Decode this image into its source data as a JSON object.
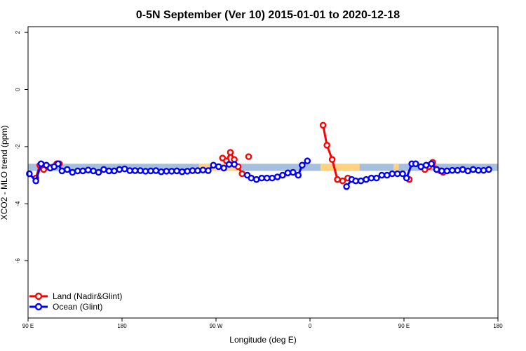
{
  "chart_data": {
    "type": "line",
    "title": "0-5N September (Ver 10)   2015-01-01 to 2020-12-18",
    "xlabel": "Longitude (deg E)",
    "ylabel": "XCO2 - MLO trend (ppm)",
    "xlim": [
      90,
      450
    ],
    "ylim": [
      -8,
      2.2
    ],
    "x_ticks": [
      {
        "value": 90,
        "label": "90 E"
      },
      {
        "value": 162,
        "label": "180"
      },
      {
        "value": 234,
        "label": "90 W"
      },
      {
        "value": 306,
        "label": "0"
      },
      {
        "value": 378,
        "label": "90 E"
      },
      {
        "value": 450,
        "label": "180"
      }
    ],
    "y_ticks": [
      {
        "value": 2,
        "label": "2"
      },
      {
        "value": 0,
        "label": "0"
      },
      {
        "value": -2,
        "label": "-2"
      },
      {
        "value": -4,
        "label": "-4"
      },
      {
        "value": -6,
        "label": "-6"
      }
    ],
    "background_band": {
      "y_range": [
        -2.85,
        -2.6
      ],
      "land_color": "#FFD27F",
      "ocean_color": "#A7BFDF",
      "land_x_ranges": [
        [
          221,
          252
        ],
        [
          314,
          344
        ],
        [
          370,
          374
        ]
      ]
    },
    "series": [
      {
        "name": "Land (Nadir&Glint)",
        "color": "#FF0000",
        "segments": [
          [
            [
              96,
              -3.1
            ],
            [
              99,
              -2.65
            ],
            [
              102,
              -2.8
            ],
            [
              105,
              -2.7
            ],
            [
              112,
              -2.6
            ],
            [
              114,
              -2.6
            ]
          ],
          [
            [
              239,
              -2.4
            ],
            [
              242,
              -2.5
            ],
            [
              245,
              -2.2
            ],
            [
              248,
              -2.45
            ],
            [
              251,
              -2.7
            ],
            [
              254,
              -2.95
            ]
          ],
          [
            [
              259,
              -2.35
            ]
          ],
          [
            [
              316,
              -1.25
            ],
            [
              319,
              -1.95
            ],
            [
              323,
              -2.45
            ],
            [
              327,
              -3.15
            ],
            [
              331,
              -3.2
            ],
            [
              335,
              -3.1
            ]
          ],
          [
            [
              382,
              -3.15
            ]
          ],
          [
            [
              394,
              -2.8
            ],
            [
              397,
              -2.7
            ],
            [
              400,
              -2.55
            ],
            [
              403,
              -2.8
            ],
            [
              406,
              -2.85
            ],
            [
              408,
              -2.9
            ]
          ]
        ]
      },
      {
        "name": "Ocean (Glint)",
        "color": "#0000FF",
        "segments": [
          [
            [
              91,
              -2.95
            ],
            [
              96,
              -3.2
            ],
            [
              100,
              -2.6
            ],
            [
              104,
              -2.65
            ],
            [
              107,
              -2.75
            ],
            [
              110,
              -2.7
            ],
            [
              113,
              -2.6
            ],
            [
              116,
              -2.85
            ],
            [
              120,
              -2.8
            ],
            [
              124,
              -2.9
            ],
            [
              128,
              -2.85
            ],
            [
              132,
              -2.85
            ],
            [
              136,
              -2.82
            ],
            [
              140,
              -2.85
            ],
            [
              144,
              -2.9
            ],
            [
              148,
              -2.8
            ],
            [
              152,
              -2.85
            ],
            [
              156,
              -2.85
            ],
            [
              160,
              -2.8
            ],
            [
              164,
              -2.78
            ],
            [
              168,
              -2.84
            ],
            [
              172,
              -2.84
            ],
            [
              176,
              -2.84
            ],
            [
              180,
              -2.86
            ],
            [
              184,
              -2.85
            ],
            [
              188,
              -2.84
            ],
            [
              192,
              -2.88
            ],
            [
              196,
              -2.86
            ],
            [
              200,
              -2.86
            ],
            [
              204,
              -2.85
            ],
            [
              208,
              -2.88
            ],
            [
              212,
              -2.86
            ],
            [
              216,
              -2.84
            ],
            [
              220,
              -2.84
            ],
            [
              224,
              -2.82
            ],
            [
              228,
              -2.84
            ],
            [
              232,
              -2.65
            ],
            [
              236,
              -2.7
            ],
            [
              240,
              -2.75
            ],
            [
              244,
              -2.62
            ],
            [
              248,
              -2.62
            ]
          ],
          [
            [
              258,
              -3.0
            ],
            [
              261,
              -3.1
            ],
            [
              265,
              -3.15
            ],
            [
              269,
              -3.1
            ],
            [
              273,
              -3.1
            ],
            [
              277,
              -3.1
            ],
            [
              281,
              -3.06
            ],
            [
              285,
              -3.0
            ],
            [
              289,
              -2.92
            ],
            [
              293,
              -2.9
            ],
            [
              297,
              -3.0
            ],
            [
              300,
              -2.65
            ],
            [
              304,
              -2.5
            ]
          ],
          [
            [
              334,
              -3.4
            ],
            [
              338,
              -3.15
            ],
            [
              341,
              -3.2
            ],
            [
              345,
              -3.2
            ],
            [
              349,
              -3.15
            ],
            [
              353,
              -3.1
            ],
            [
              357,
              -3.1
            ],
            [
              361,
              -3.0
            ],
            [
              365,
              -3.0
            ],
            [
              369,
              -2.95
            ],
            [
              373,
              -2.95
            ],
            [
              377,
              -2.95
            ],
            [
              380,
              -3.1
            ],
            [
              384,
              -2.6
            ],
            [
              387,
              -2.6
            ],
            [
              391,
              -2.7
            ],
            [
              395,
              -2.65
            ],
            [
              399,
              -2.6
            ],
            [
              403,
              -2.8
            ],
            [
              407,
              -2.85
            ],
            [
              411,
              -2.85
            ],
            [
              415,
              -2.83
            ],
            [
              419,
              -2.83
            ],
            [
              423,
              -2.8
            ],
            [
              427,
              -2.85
            ],
            [
              431,
              -2.8
            ],
            [
              435,
              -2.83
            ],
            [
              439,
              -2.83
            ],
            [
              443,
              -2.8
            ]
          ]
        ]
      }
    ],
    "legend": {
      "placement": "bottom-left"
    }
  }
}
